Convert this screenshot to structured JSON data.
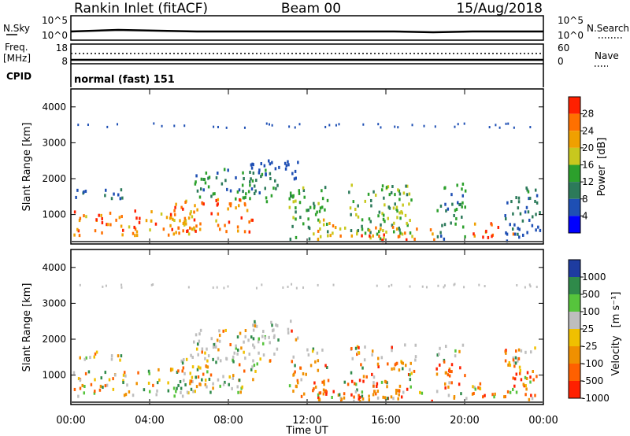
{
  "header": {
    "station": "Rankin Inlet (fitACF)",
    "beam": "Beam 00",
    "date": "15/Aug/2018"
  },
  "noise_panel": {
    "left_label": "N.Sky",
    "right_label": "N.Search",
    "ticks_left": [
      "10^5",
      "10^0"
    ],
    "ticks_right": [
      "10^5",
      "10^0"
    ]
  },
  "freq_panel": {
    "left_label": "Freq.",
    "left_unit": "[MHz]",
    "right_label": "Nave",
    "ticks_left": [
      "18",
      "8"
    ],
    "ticks_right": [
      "60",
      "0"
    ]
  },
  "cpid": {
    "label": "CPID",
    "value": "normal (fast) 151"
  },
  "chart_data": [
    {
      "type": "heatmap",
      "name_label": "Power",
      "unit": "[dB]",
      "ylabel": "Slant Range [km]",
      "xlabel": "Time UT",
      "x_ticks": [
        "00:00",
        "04:00",
        "08:00",
        "12:00",
        "16:00",
        "20:00",
        "00:00"
      ],
      "y_ticks": [
        "1000",
        "2000",
        "3000",
        "4000"
      ],
      "ylim": [
        180,
        4500
      ],
      "colorbar_ticks": [
        "4",
        "8",
        "12",
        "16",
        "20",
        "24",
        "28"
      ],
      "colors": [
        "#0000ff",
        "#1e4fb4",
        "#2c7a5a",
        "#2ca02c",
        "#c8c81e",
        "#f0a000",
        "#ff7000",
        "#ff2000"
      ]
    },
    {
      "type": "heatmap",
      "name_label": "Velocity",
      "unit": "[m s⁻¹]",
      "ylabel": "Slant Range [km]",
      "xlabel": "Time UT",
      "x_ticks": [
        "00:00",
        "04:00",
        "08:00",
        "12:00",
        "16:00",
        "20:00",
        "00:00"
      ],
      "y_ticks": [
        "1000",
        "2000",
        "3000",
        "4000"
      ],
      "ylim": [
        180,
        4500
      ],
      "colorbar_ticks": [
        "1000",
        "500",
        "100",
        "25",
        "-25",
        "-100",
        "-500",
        "-1000"
      ],
      "colors": [
        "#1e3ca0",
        "#2f8a4a",
        "#56c43c",
        "#bebebe",
        "#f0c000",
        "#f09000",
        "#ff6000",
        "#ff2000"
      ]
    }
  ],
  "x_axis_label": "Time UT"
}
